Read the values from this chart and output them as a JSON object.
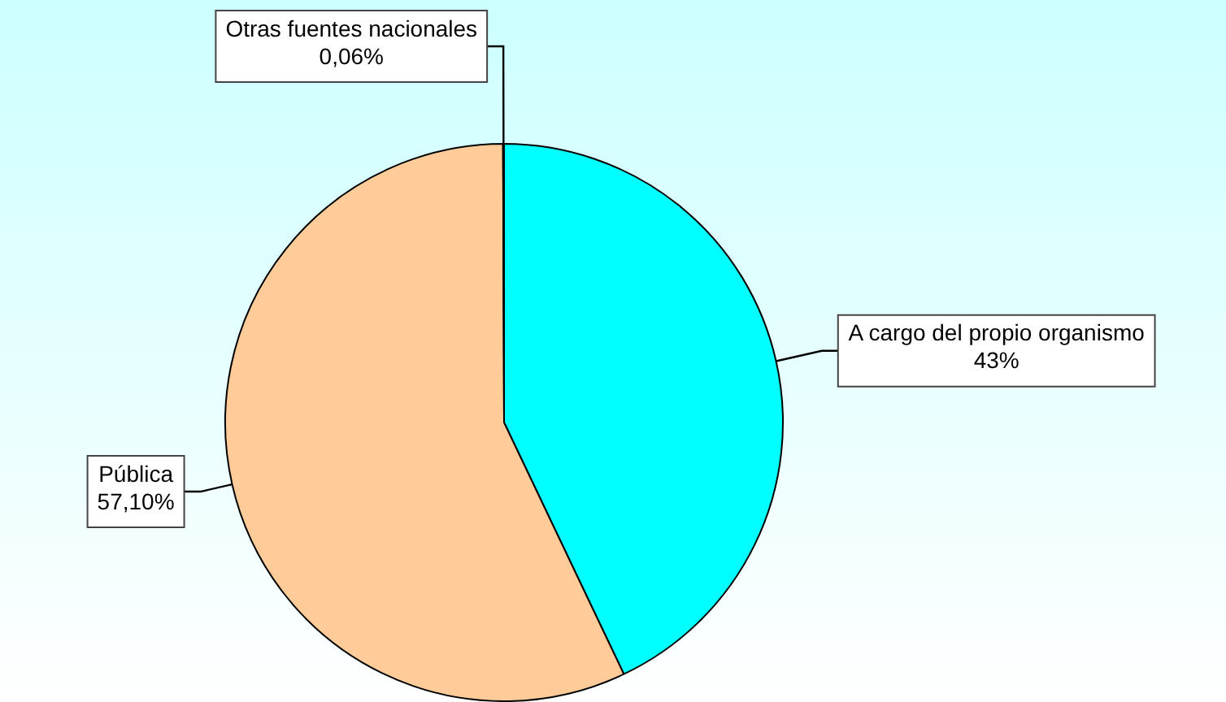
{
  "chart_data": {
    "type": "pie",
    "categories": [
      "A cargo del propio organismo",
      "Pública",
      "Otras fuentes nacionales"
    ],
    "values": [
      43,
      57.1,
      0.06
    ],
    "value_labels": [
      "43%",
      "57,10%",
      "0,06%"
    ],
    "colors": [
      "#00ffff",
      "#ffcc99",
      "#ffffcc"
    ],
    "legend": false
  }
}
